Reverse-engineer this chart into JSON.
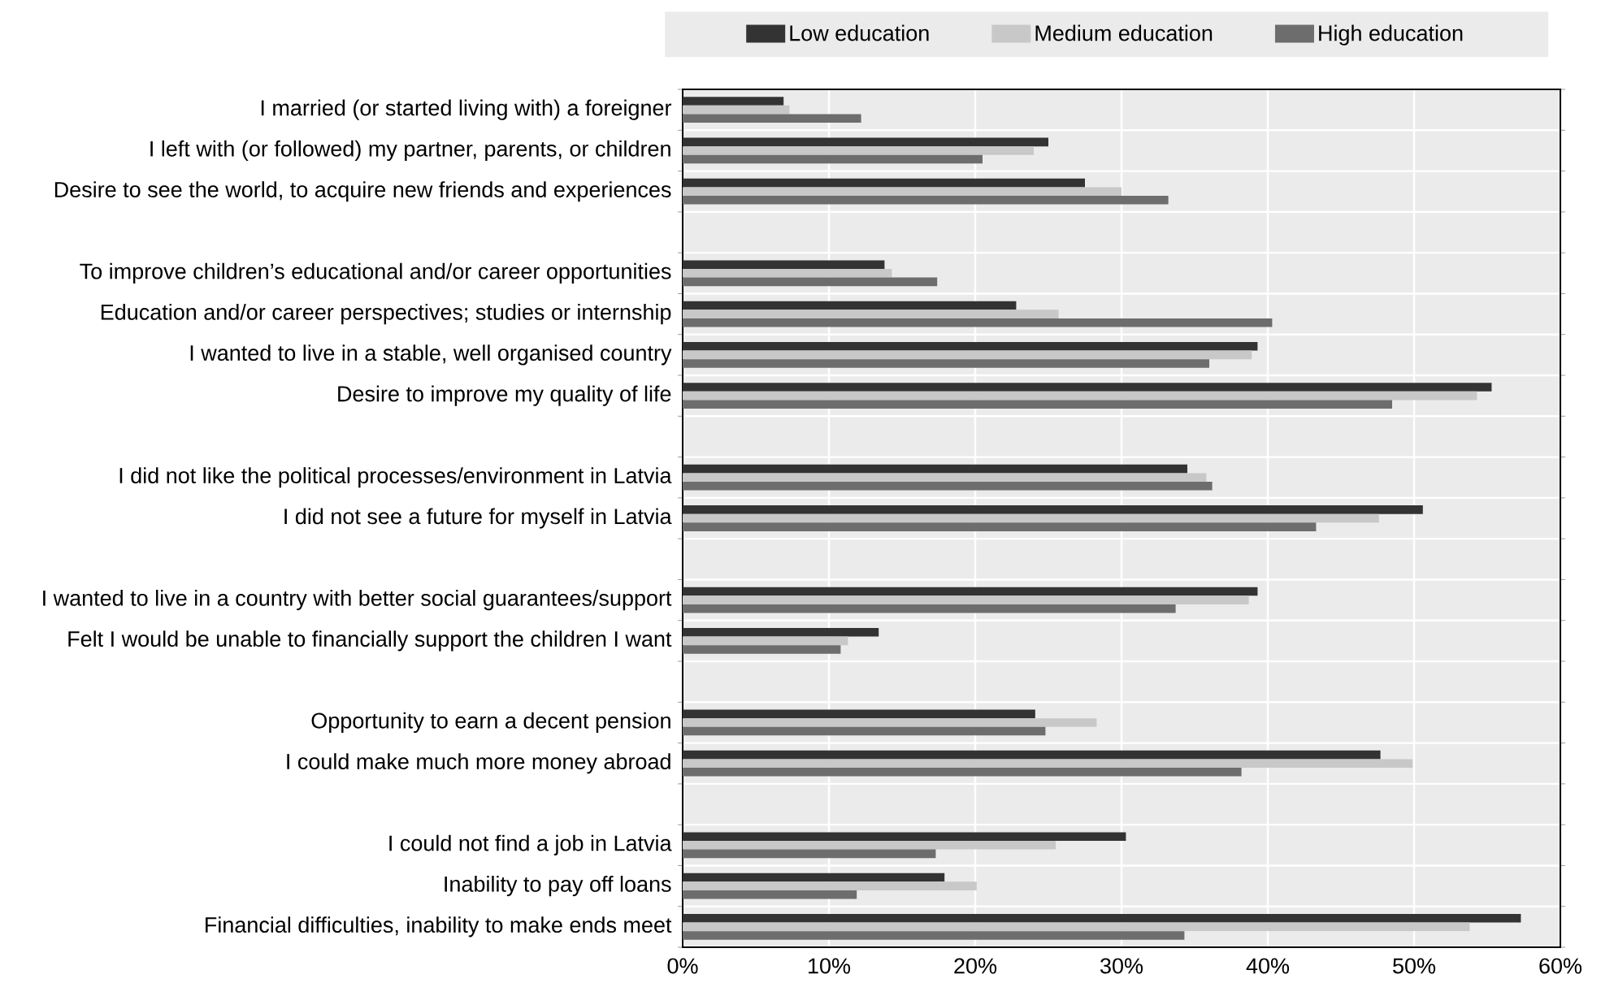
{
  "chart_data": {
    "type": "bar",
    "orientation": "horizontal",
    "categories": [
      "I married (or started living with) a foreigner",
      "I left with (or followed) my partner, parents, or children",
      "Desire to see the world, to acquire new friends and experiences",
      null,
      "To improve children’s educational and/or career opportunities",
      "Education and/or career perspectives; studies or internship",
      "I wanted to live in a stable, well organised country",
      "Desire to improve my quality of life",
      null,
      "I did not like the political processes/environment in Latvia",
      "I did not see a future for myself in Latvia",
      null,
      "I wanted to live in a country with better social guarantees/support",
      "Felt I would be unable to financially support the children I want",
      null,
      "Opportunity to earn a decent pension",
      "I could make much more money abroad",
      null,
      "I could not find a job in Latvia",
      "Inability to pay off loans",
      "Financial difficulties, inability to make ends meet"
    ],
    "series": [
      {
        "name": "Low education",
        "color": "#333333",
        "values": [
          6.9,
          25.0,
          27.5,
          null,
          13.8,
          22.8,
          39.3,
          55.3,
          null,
          34.5,
          50.6,
          null,
          39.3,
          13.4,
          null,
          24.1,
          47.7,
          null,
          30.3,
          17.9,
          57.3
        ]
      },
      {
        "name": "Medium education",
        "color": "#c8c8c8",
        "values": [
          7.3,
          24.0,
          30.0,
          null,
          14.3,
          25.7,
          38.9,
          54.3,
          null,
          35.8,
          47.6,
          null,
          38.7,
          11.3,
          null,
          28.3,
          49.9,
          null,
          25.5,
          20.1,
          53.8
        ]
      },
      {
        "name": "High education",
        "color": "#6d6d6d",
        "values": [
          12.2,
          20.5,
          33.2,
          null,
          17.4,
          40.3,
          36.0,
          48.5,
          null,
          36.2,
          43.3,
          null,
          33.7,
          10.8,
          null,
          24.8,
          38.2,
          null,
          17.3,
          11.9,
          34.3
        ]
      }
    ],
    "xlim": [
      0,
      60
    ],
    "xticks": [
      {
        "value": 0,
        "label": "0%"
      },
      {
        "value": 10,
        "label": "10%"
      },
      {
        "value": 20,
        "label": "20%"
      },
      {
        "value": 30,
        "label": "30%"
      },
      {
        "value": 40,
        "label": "40%"
      },
      {
        "value": 50,
        "label": "50%"
      },
      {
        "value": 60,
        "label": "60%"
      }
    ],
    "grid": true,
    "legend": "top"
  }
}
